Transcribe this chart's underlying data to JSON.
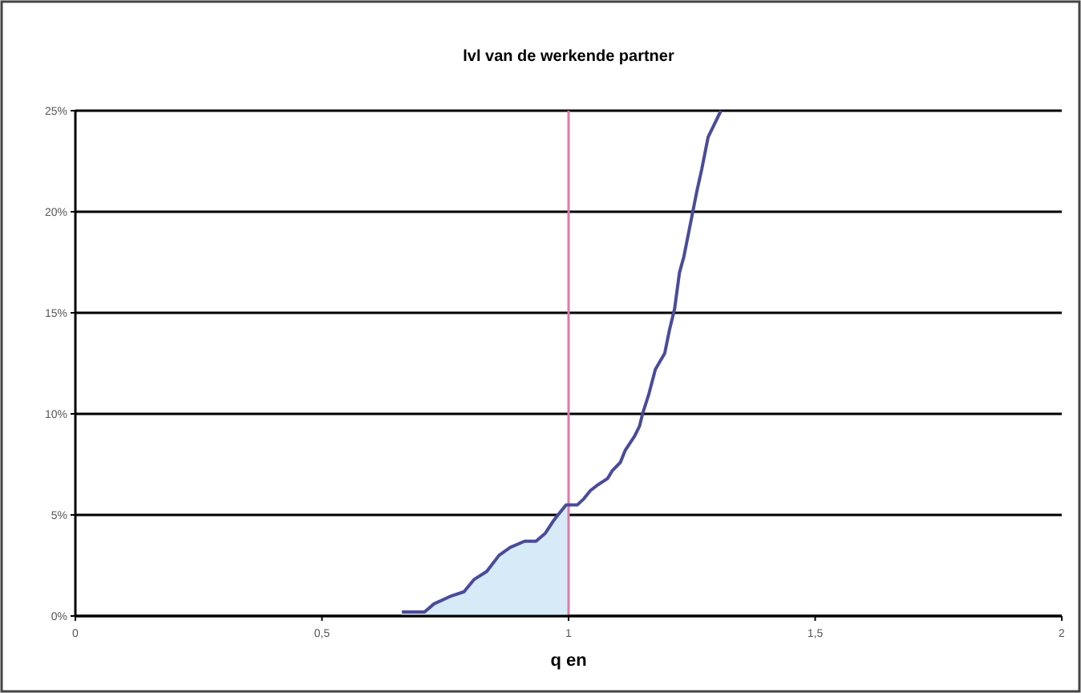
{
  "chart_data": {
    "type": "line",
    "title": "lvl van de werkende partner",
    "xlabel": "q en",
    "xlim": [
      0,
      2
    ],
    "xticks": [
      0,
      {
        "value": 0.5,
        "label": "0,5"
      },
      1,
      {
        "value": 1.5,
        "label": "1,5"
      },
      2
    ],
    "ylim": [
      0,
      25
    ],
    "yticks": [
      {
        "value": 0,
        "label": "0%"
      },
      {
        "value": 5,
        "label": "5%"
      },
      {
        "value": 10,
        "label": "10%"
      },
      {
        "value": 15,
        "label": "15%"
      },
      {
        "value": 20,
        "label": "20%"
      },
      {
        "value": 25,
        "label": "25%"
      }
    ],
    "grid": "y",
    "ref_lines": [
      {
        "axis": "x",
        "value": 1,
        "color": "#e07aa8"
      }
    ],
    "series": [
      {
        "type": "area",
        "color": "#d6eaf8",
        "x": [
          0.662,
          0.708,
          0.727,
          0.763,
          0.788,
          0.808,
          0.834,
          0.859,
          0.882,
          0.911,
          0.934,
          0.953,
          0.969,
          0.985,
          0.995,
          1.0
        ],
        "values": [
          0.2,
          0.2,
          0.6,
          1.0,
          1.2,
          1.8,
          2.2,
          3.0,
          3.4,
          3.7,
          3.7,
          4.1,
          4.7,
          5.2,
          5.5,
          5.5
        ]
      },
      {
        "color": "#4b4b9a",
        "x": [
          0.662,
          0.708,
          0.727,
          0.763,
          0.788,
          0.808,
          0.834,
          0.859,
          0.882,
          0.911,
          0.934,
          0.953,
          0.969,
          0.985,
          0.995,
          1.0,
          1.018,
          1.031,
          1.044,
          1.06,
          1.079,
          1.089,
          1.105,
          1.115,
          1.134,
          1.144,
          1.15,
          1.163,
          1.176,
          1.195,
          1.205,
          1.215,
          1.225,
          1.234,
          1.247,
          1.26,
          1.27,
          1.283,
          1.309
        ],
        "values": [
          0.2,
          0.2,
          0.6,
          1.0,
          1.2,
          1.8,
          2.2,
          3.0,
          3.4,
          3.7,
          3.7,
          4.1,
          4.7,
          5.2,
          5.5,
          5.5,
          5.5,
          5.8,
          6.2,
          6.5,
          6.8,
          7.2,
          7.6,
          8.2,
          8.9,
          9.4,
          10.0,
          11.0,
          12.2,
          13.0,
          14.2,
          15.2,
          17.0,
          17.8,
          19.4,
          21.0,
          22.1,
          23.7,
          25.0
        ]
      }
    ]
  }
}
